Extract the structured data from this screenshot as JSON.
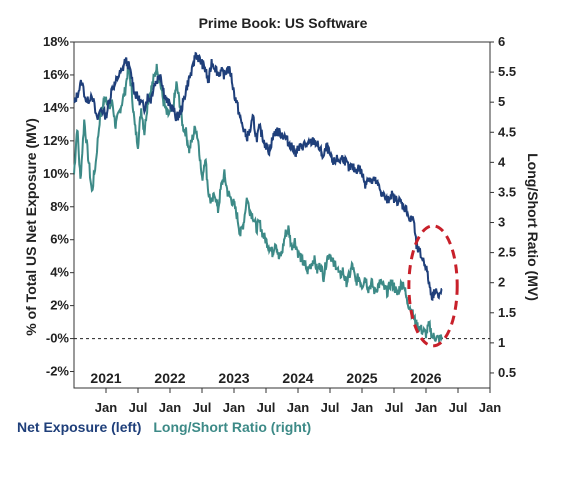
{
  "chart_data": {
    "type": "line",
    "title": "Prime Book: US Software",
    "ylabel_left": "% of Total US Net Exposure (MV)",
    "ylabel_right": "Long/Short Ratio (MV)",
    "yticks_left": [
      "18%",
      "16%",
      "14%",
      "12%",
      "10%",
      "8%",
      "6%",
      "4%",
      "2%",
      "-0%",
      "-2%"
    ],
    "yticks_right": [
      "6",
      "5.5",
      "5",
      "4.5",
      "4",
      "3.5",
      "3",
      "2.5",
      "2",
      "1.5",
      "1",
      "0.5"
    ],
    "ylim_left": [
      -3,
      18
    ],
    "ylim_right": [
      0.25,
      6
    ],
    "month_ticks": [
      "Jan",
      "Jul",
      "Jan",
      "Jul",
      "Jan",
      "Jul",
      "Jan",
      "Jul",
      "Jan",
      "Jul",
      "Jan",
      "Jul",
      "Jan",
      "Jul"
    ],
    "years": [
      "2021",
      "2022",
      "2023",
      "2024",
      "2025",
      "2026"
    ],
    "reference_line": {
      "axis": "left",
      "value": 0,
      "style": "dashed"
    },
    "grid": false,
    "legend_position": "bottom-left",
    "series": [
      {
        "name": "Net Exposure (left)",
        "axis": "left",
        "color": "#1f3f7a",
        "x": [
          2020.5,
          2020.55,
          2020.62,
          2020.7,
          2020.78,
          2020.86,
          2020.92,
          2021.0,
          2021.05,
          2021.1,
          2021.15,
          2021.2,
          2021.25,
          2021.3,
          2021.35,
          2021.4,
          2021.45,
          2021.5,
          2021.55,
          2021.6,
          2021.65,
          2021.7,
          2021.75,
          2021.8,
          2021.85,
          2021.9,
          2021.95,
          2022.0,
          2022.05,
          2022.1,
          2022.15,
          2022.2,
          2022.25,
          2022.3,
          2022.35,
          2022.4,
          2022.45,
          2022.5,
          2022.55,
          2022.6,
          2022.65,
          2022.7,
          2022.75,
          2022.8,
          2022.85,
          2022.9,
          2022.95,
          2023.0,
          2023.05,
          2023.1,
          2023.15,
          2023.2,
          2023.25,
          2023.3,
          2023.35,
          2023.4,
          2023.45,
          2023.5,
          2023.55,
          2023.6,
          2023.65,
          2023.7,
          2023.75,
          2023.8,
          2023.85,
          2023.9,
          2023.95,
          2024.0,
          2024.05,
          2024.1,
          2024.15,
          2024.2,
          2024.25,
          2024.3,
          2024.35,
          2024.4,
          2024.45,
          2024.5,
          2024.55,
          2024.6,
          2024.65,
          2024.7,
          2024.75,
          2024.8,
          2024.85,
          2024.9,
          2024.95,
          2025.0,
          2025.05,
          2025.1,
          2025.15,
          2025.2,
          2025.25,
          2025.3,
          2025.35,
          2025.4,
          2025.45,
          2025.5,
          2025.55,
          2025.6,
          2025.65,
          2025.7,
          2025.75,
          2025.8,
          2025.85,
          2025.9,
          2025.95,
          2026.0,
          2026.05,
          2026.1,
          2026.15,
          2026.2,
          2026.25
        ],
        "y": [
          14.2,
          14.8,
          15.6,
          14.3,
          14.9,
          13.2,
          14.0,
          13.5,
          14.4,
          15.3,
          15.5,
          16.0,
          16.2,
          16.9,
          16.6,
          15.9,
          14.9,
          14.6,
          14.3,
          14.0,
          14.7,
          14.5,
          15.4,
          15.7,
          16.1,
          15.0,
          14.4,
          14.2,
          13.9,
          13.4,
          13.6,
          14.2,
          15.1,
          15.8,
          16.3,
          17.3,
          17.0,
          16.7,
          16.4,
          15.5,
          16.8,
          16.5,
          16.1,
          16.2,
          16.0,
          16.4,
          16.1,
          14.9,
          14.2,
          13.3,
          12.7,
          12.2,
          12.6,
          13.4,
          12.1,
          12.8,
          12.2,
          11.7,
          11.4,
          12.1,
          12.6,
          12.5,
          12.4,
          12.2,
          11.9,
          11.7,
          11.3,
          11.5,
          11.6,
          11.8,
          11.7,
          11.9,
          12.0,
          11.8,
          11.4,
          11.0,
          11.7,
          11.1,
          10.6,
          10.9,
          10.8,
          11.0,
          10.7,
          10.3,
          10.4,
          10.2,
          10.4,
          10.0,
          9.4,
          9.8,
          9.5,
          9.6,
          9.3,
          8.9,
          8.6,
          8.3,
          8.8,
          8.5,
          8.4,
          8.3,
          8.0,
          7.8,
          7.1,
          7.4,
          5.6,
          5.2,
          4.8,
          4.4,
          3.3,
          2.5,
          3.1,
          2.4,
          3.0
        ]
      },
      {
        "name": "Long/Short Ratio (right)",
        "axis": "right",
        "color": "#3d8a87",
        "x": [
          2020.5,
          2020.55,
          2020.6,
          2020.66,
          2020.72,
          2020.78,
          2020.84,
          2020.9,
          2020.96,
          2021.0,
          2021.05,
          2021.1,
          2021.15,
          2021.2,
          2021.25,
          2021.3,
          2021.35,
          2021.4,
          2021.45,
          2021.5,
          2021.55,
          2021.6,
          2021.65,
          2021.7,
          2021.75,
          2021.8,
          2021.85,
          2021.9,
          2021.95,
          2022.0,
          2022.05,
          2022.1,
          2022.15,
          2022.2,
          2022.25,
          2022.3,
          2022.35,
          2022.4,
          2022.45,
          2022.5,
          2022.55,
          2022.6,
          2022.65,
          2022.7,
          2022.75,
          2022.8,
          2022.85,
          2022.9,
          2022.95,
          2023.0,
          2023.05,
          2023.1,
          2023.15,
          2023.2,
          2023.25,
          2023.3,
          2023.35,
          2023.4,
          2023.45,
          2023.5,
          2023.55,
          2023.6,
          2023.65,
          2023.7,
          2023.75,
          2023.8,
          2023.85,
          2023.9,
          2023.95,
          2024.0,
          2024.05,
          2024.1,
          2024.15,
          2024.2,
          2024.25,
          2024.3,
          2024.35,
          2024.4,
          2024.45,
          2024.5,
          2024.55,
          2024.6,
          2024.65,
          2024.7,
          2024.75,
          2024.8,
          2024.85,
          2024.9,
          2024.95,
          2025.0,
          2025.05,
          2025.1,
          2025.15,
          2025.2,
          2025.25,
          2025.3,
          2025.35,
          2025.4,
          2025.45,
          2025.5,
          2025.55,
          2025.6,
          2025.65,
          2025.7,
          2025.75,
          2025.8,
          2025.85,
          2025.9,
          2025.95,
          2026.0,
          2026.05,
          2026.1,
          2026.15,
          2026.2,
          2026.25
        ],
        "y": [
          3.8,
          4.6,
          3.7,
          4.7,
          4.1,
          3.5,
          4.0,
          4.7,
          5.0,
          5.1,
          4.9,
          5.0,
          4.6,
          4.8,
          5.0,
          5.2,
          5.6,
          5.2,
          4.6,
          4.3,
          4.9,
          4.5,
          5.0,
          5.2,
          5.4,
          5.6,
          5.3,
          5.0,
          4.8,
          4.8,
          4.9,
          5.3,
          5.0,
          4.6,
          4.5,
          4.2,
          4.4,
          4.6,
          4.3,
          3.7,
          4.1,
          3.5,
          3.3,
          3.5,
          3.2,
          3.6,
          3.8,
          3.5,
          3.4,
          3.3,
          3.1,
          2.8,
          3.0,
          3.4,
          3.2,
          3.1,
          2.9,
          3.0,
          2.8,
          2.7,
          2.6,
          2.5,
          2.7,
          2.4,
          2.5,
          2.8,
          2.9,
          2.6,
          2.7,
          2.5,
          2.4,
          2.3,
          2.2,
          2.3,
          2.4,
          2.2,
          2.3,
          2.1,
          2.4,
          2.5,
          2.3,
          2.3,
          2.1,
          2.2,
          2.0,
          2.1,
          2.3,
          2.0,
          2.1,
          1.95,
          2.1,
          1.9,
          2.0,
          1.85,
          1.95,
          2.0,
          1.9,
          1.85,
          2.0,
          1.95,
          1.8,
          1.95,
          2.0,
          1.7,
          1.6,
          1.45,
          1.3,
          1.25,
          1.2,
          1.15,
          1.3,
          1.1,
          1.1,
          1.05,
          1.1
        ]
      }
    ],
    "annotation": {
      "type": "ellipse",
      "color": "#c8202a",
      "style": "dashed"
    }
  },
  "legend": {
    "net_label": "Net Exposure (left)",
    "ratio_label": "Long/Short Ratio (right)",
    "net_color": "#1f3f7a",
    "ratio_color": "#3d8a87"
  }
}
